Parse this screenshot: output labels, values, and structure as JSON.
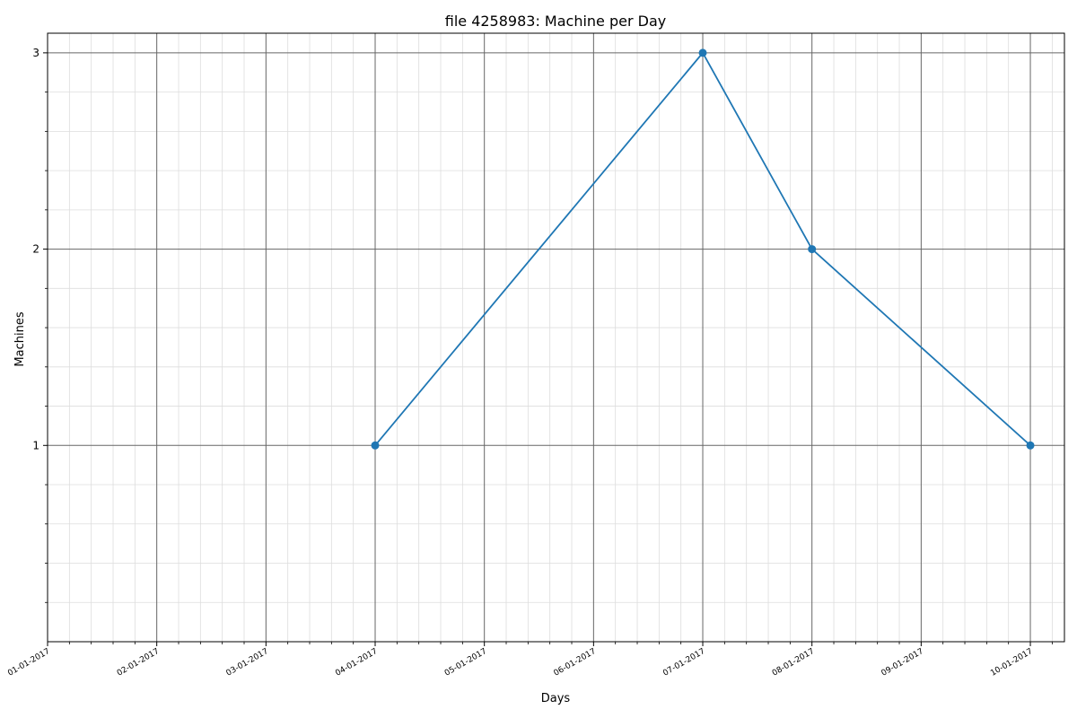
{
  "chart_data": {
    "type": "line",
    "title": "file 4258983: Machine per Day",
    "xlabel": "Days",
    "ylabel": "Machines",
    "x_tick_labels": [
      "01-01-2017",
      "02-01-2017",
      "03-01-2017",
      "04-01-2017",
      "05-01-2017",
      "06-01-2017",
      "07-01-2017",
      "08-01-2017",
      "09-01-2017",
      "10-01-2017"
    ],
    "y_ticks": [
      1,
      2,
      3
    ],
    "ylim": [
      0,
      3.1
    ],
    "xlim": [
      "01-01-2017",
      "10-01-2017"
    ],
    "grid": "major and minor",
    "series": [
      {
        "x": [
          "04-01-2017",
          "07-01-2017",
          "08-01-2017",
          "10-01-2017"
        ],
        "values": [
          1,
          3,
          2,
          1
        ]
      }
    ],
    "colors": {
      "line": "#1f77b4",
      "major_grid": "#666666",
      "minor_grid": "#dddddd"
    }
  }
}
